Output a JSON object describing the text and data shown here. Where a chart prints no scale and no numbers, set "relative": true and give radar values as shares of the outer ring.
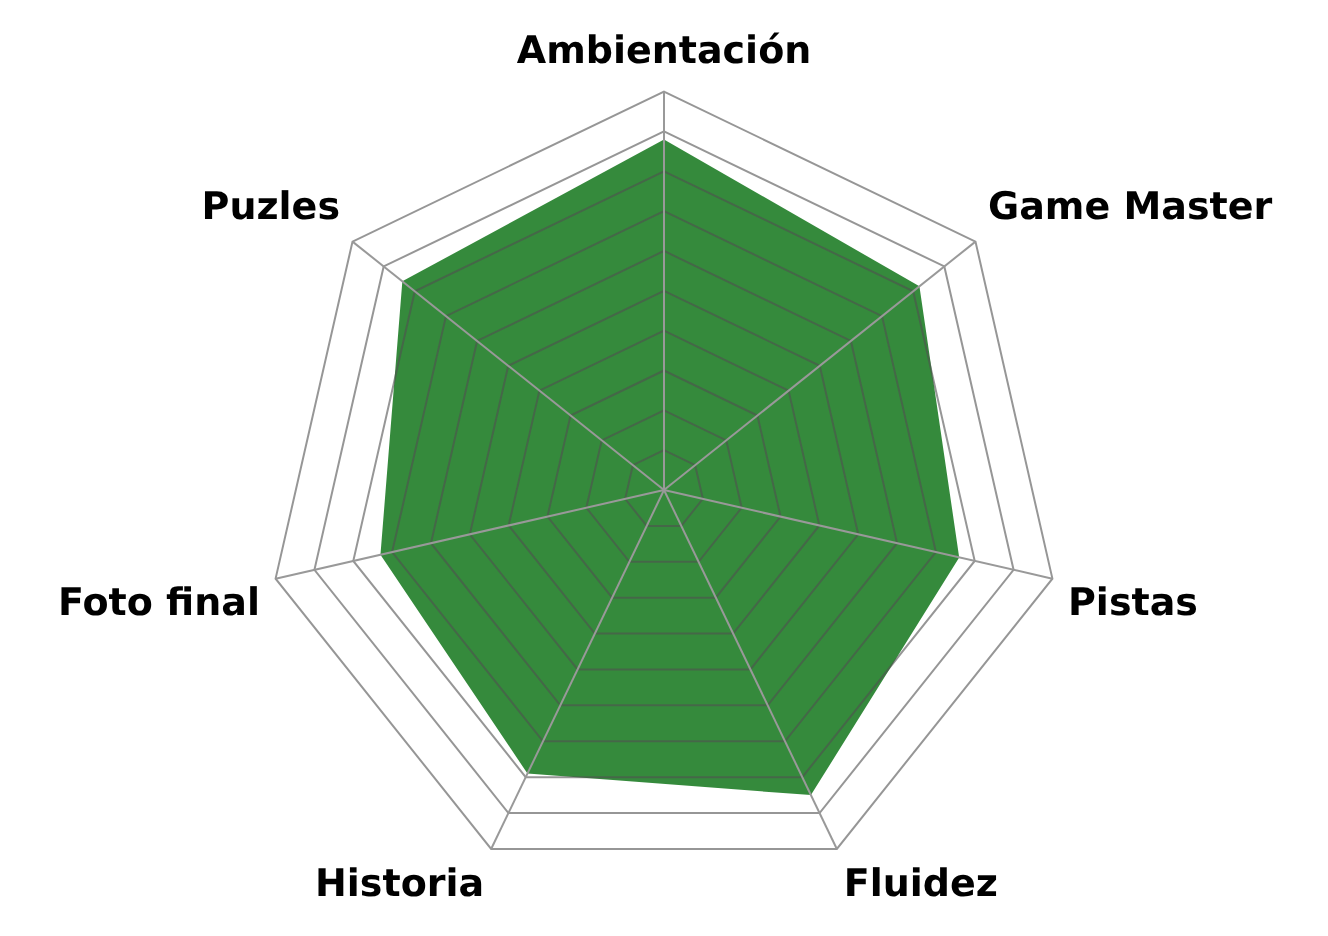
{
  "chart_data": {
    "type": "radar",
    "relative": true,
    "grid": true,
    "legend": false,
    "marker": "none",
    "categories": [
      "Ambientación",
      "Game Master",
      "Pistas",
      "Fluidez",
      "Historia",
      "Foto final",
      "Puzles"
    ],
    "series": [
      {
        "color": "#2e8636",
        "values": [
          0.88,
          0.82,
          0.76,
          0.85,
          0.79,
          0.73,
          0.84
        ]
      }
    ]
  }
}
